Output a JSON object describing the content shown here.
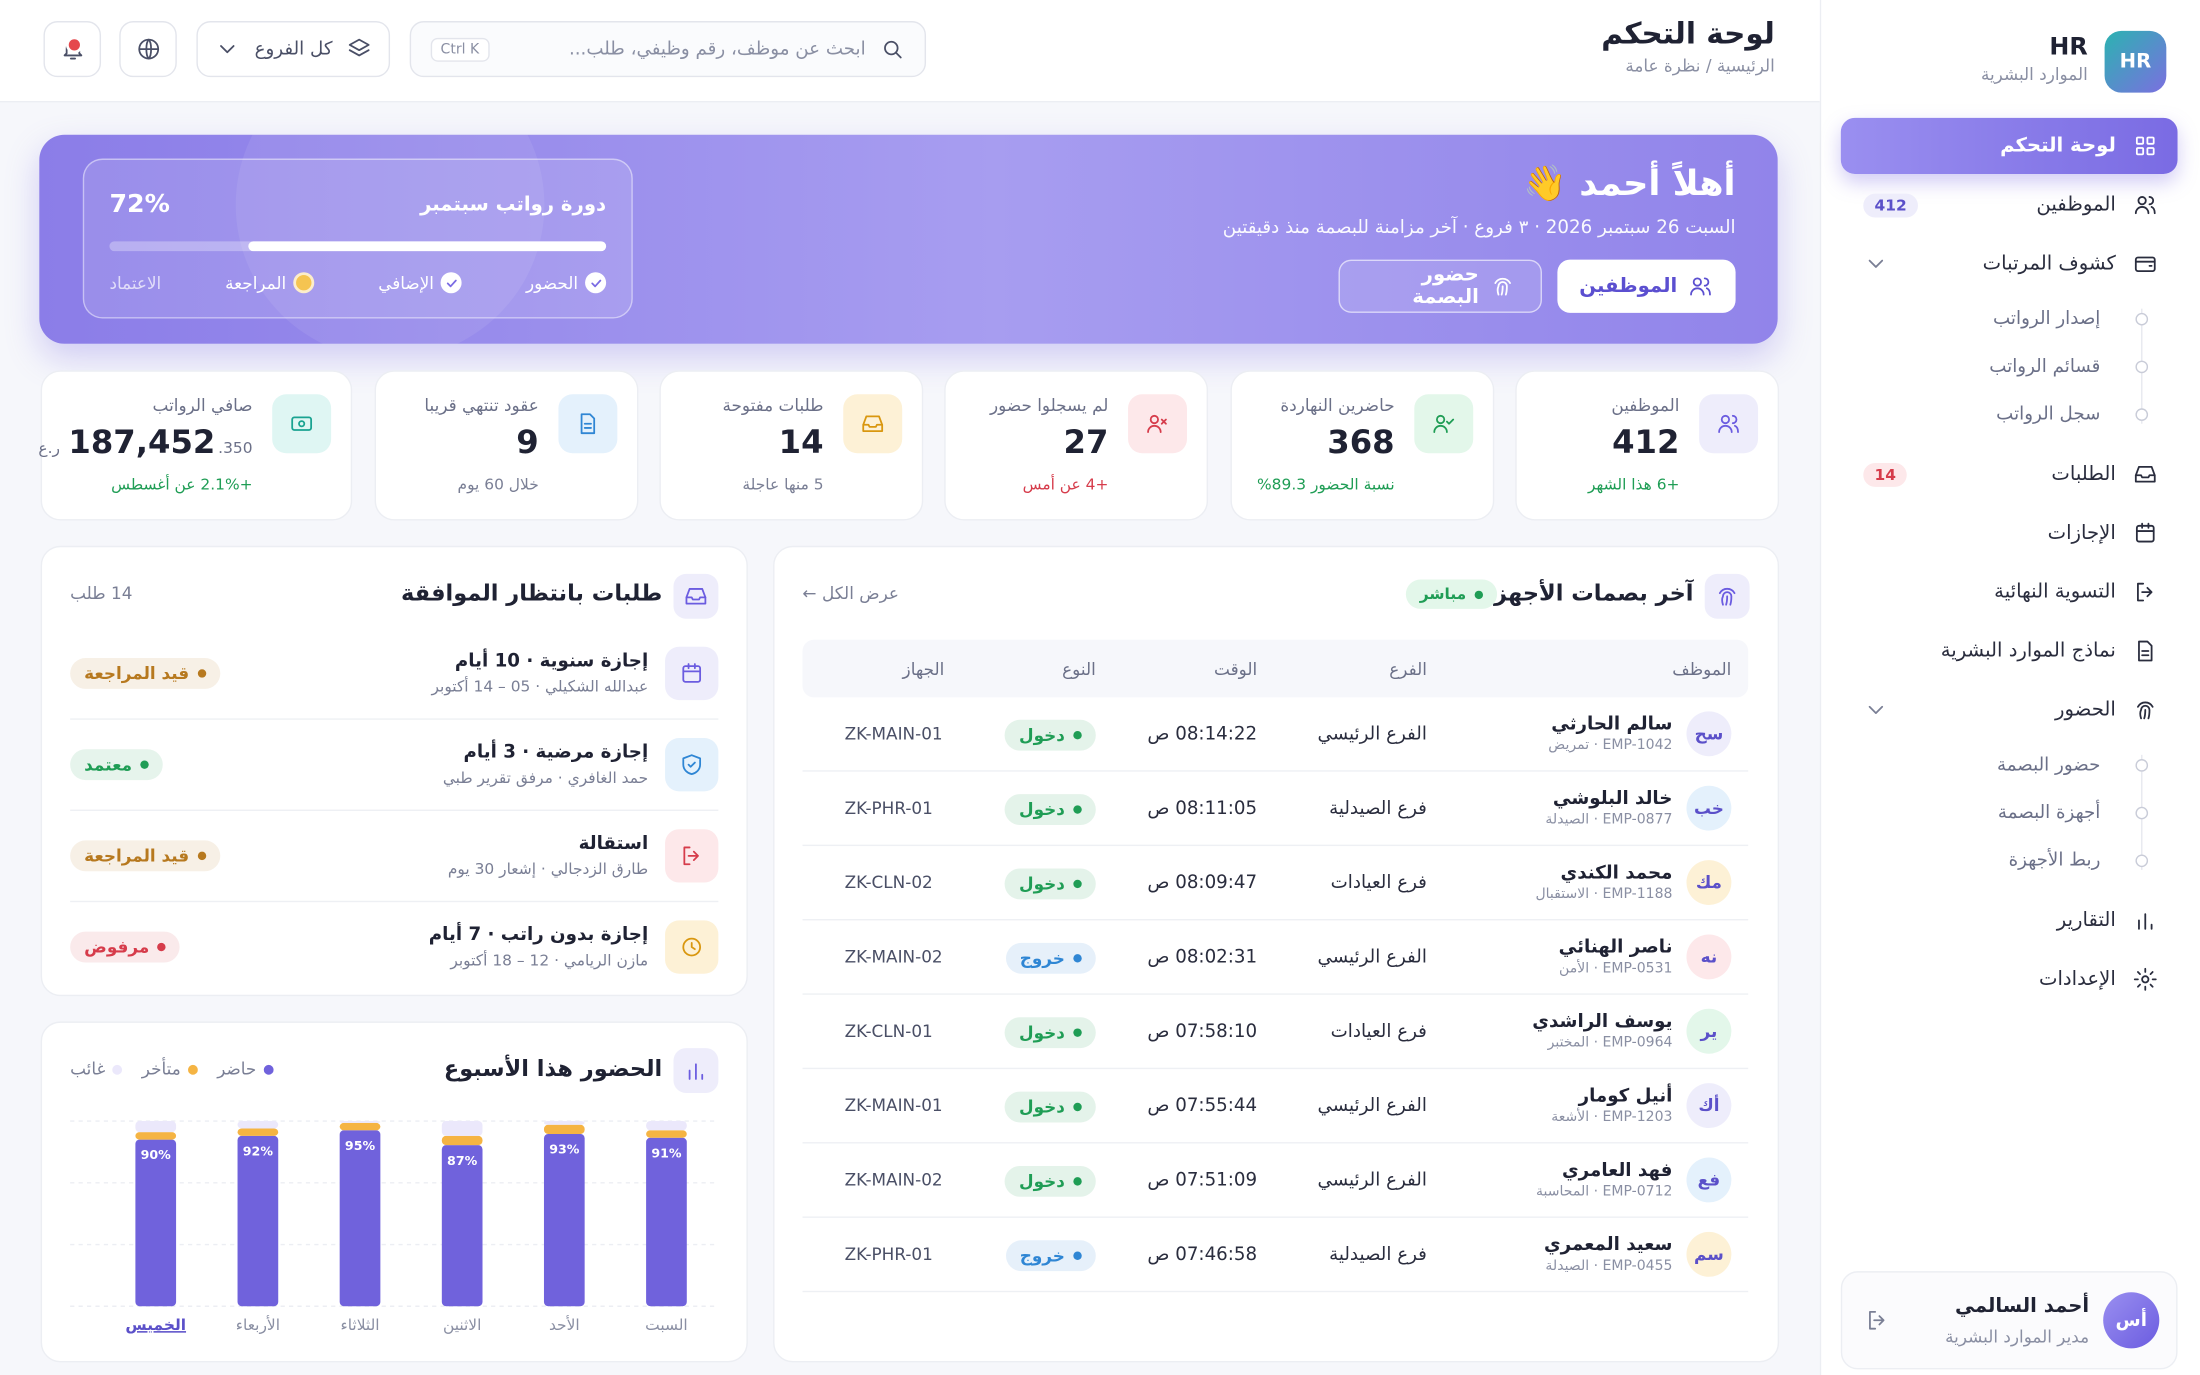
{
  "sidebar": {
    "logo": "HR",
    "title": "HR",
    "subtitle": "الموارد البشرية",
    "nav": [
      {
        "label": "لوحة التحكم",
        "active": true
      },
      {
        "label": "الموظفين",
        "badge": "412"
      },
      {
        "label": "كشوف المرتبات",
        "expanded": true,
        "children": [
          "إصدار الرواتب",
          "قسائم الرواتب",
          "سجل الرواتب"
        ]
      },
      {
        "label": "الطلبات",
        "badge": "14"
      },
      {
        "label": "الإجازات"
      },
      {
        "label": "التسوية النهائية"
      },
      {
        "label": "نماذج الموارد البشرية"
      },
      {
        "label": "الحضور",
        "expanded": true,
        "children": [
          "حضور البصمة",
          "أجهزة البصمة",
          "ربط الأجهزة"
        ]
      },
      {
        "label": "التقارير"
      },
      {
        "label": "الإعدادات"
      }
    ],
    "user": {
      "initials": "أس",
      "name": "أحمد السالمي",
      "role": "مدير الموارد البشرية"
    }
  },
  "header": {
    "title": "لوحة التحكم",
    "breadcrumb": "الرئيسية / نظرة عامة",
    "search_placeholder": "ابحث عن موظف، رقم وظيفي، طلب...",
    "shortcut": "Ctrl K",
    "branch": "كل الفروع"
  },
  "hero": {
    "greeting": "أهلاً أحمد 👋",
    "subtitle": "السبت 26 سبتمبر 2026 · ٣ فروع · آخر مزامنة للبصمة منذ دقيقتين",
    "buttons": [
      "الموظفين",
      "حضور البصمة"
    ],
    "payroll": {
      "title": "دورة رواتب سبتمبر",
      "progress": 72,
      "progress_label": "72%",
      "steps": [
        {
          "label": "الحضور",
          "done": true
        },
        {
          "label": "الإضافي",
          "done": true
        },
        {
          "label": "المراجعة",
          "current": true
        },
        {
          "label": "الاعتماد"
        }
      ]
    }
  },
  "stats": [
    {
      "label": "الموظفين",
      "value": "412",
      "note": "+6 هذا الشهر",
      "note_color": "#1f9d55",
      "icon_bg": "#eeedfb",
      "icon_color": "#6b5ce0"
    },
    {
      "label": "حاضرين النهاردة",
      "value": "368",
      "note": "نسبة الحضور 89.3%",
      "note_color": "#1f9d55",
      "icon_bg": "#e3f7ea",
      "icon_color": "#1f9d55"
    },
    {
      "label": "لم يسجلوا حضور",
      "value": "27",
      "note": "+4 عن أمس",
      "note_color": "#d63c4b",
      "icon_bg": "#fde8ea",
      "icon_color": "#d63c4b"
    },
    {
      "label": "طلبات مفتوحة",
      "value": "14",
      "note": "5 منها عاجلة",
      "note_color": "#7a7f95",
      "icon_bg": "#fdf1d6",
      "icon_color": "#d9970f"
    },
    {
      "label": "عقود تنتهي قريبا",
      "value": "9",
      "note": "خلال 60 يوم",
      "note_color": "#7a7f95",
      "icon_bg": "#e4f1fc",
      "icon_color": "#2f86d4"
    },
    {
      "label": "صافي الرواتب",
      "value": "187,452",
      "decimals": ".350",
      "currency": "ر.ع",
      "note": "+2.1% عن أغسطس",
      "note_color": "#1f9d55",
      "icon_bg": "#dff6f3",
      "icon_color": "#1aa391"
    }
  ],
  "fingerprints": {
    "title": "آخر بصمات الأجهزة",
    "live": "مباشر",
    "view_all": "عرض الكل ←",
    "columns": [
      "الموظف",
      "الفرع",
      "الوقت",
      "النوع",
      "الجهاز"
    ],
    "rows": [
      {
        "initials": "سح",
        "name": "سالم الحارثي",
        "sub": "EMP-1042 · تمريض",
        "branch": "الفرع الرئيسي",
        "time": "08:14:22 ص",
        "type": "دخول",
        "device": "ZK-MAIN-01",
        "avatar_color": "#eeedfb",
        "type_color": "#1f9d55"
      },
      {
        "initials": "خب",
        "name": "خالد البلوشي",
        "sub": "EMP-0877 · الصيدلة",
        "branch": "فرع الصيدلية",
        "time": "08:11:05 ص",
        "type": "دخول",
        "device": "ZK-PHR-01",
        "avatar_color": "#e4f1fc",
        "type_color": "#1f9d55"
      },
      {
        "initials": "مك",
        "name": "محمد الكندي",
        "sub": "EMP-1188 · الاستقبال",
        "branch": "فرع العيادات",
        "time": "08:09:47 ص",
        "type": "دخول",
        "device": "ZK-CLN-02",
        "avatar_color": "#fdf1d6",
        "type_color": "#1f9d55"
      },
      {
        "initials": "نه",
        "name": "ناصر الهنائي",
        "sub": "EMP-0531 · الأمن",
        "branch": "الفرع الرئيسي",
        "time": "08:02:31 ص",
        "type": "خروج",
        "device": "ZK-MAIN-02",
        "avatar_color": "#fde8ea",
        "type_color": "#2f86d4"
      },
      {
        "initials": "ير",
        "name": "يوسف الراشدي",
        "sub": "EMP-0964 · المختبر",
        "branch": "فرع العيادات",
        "time": "07:58:10 ص",
        "type": "دخول",
        "device": "ZK-CLN-01",
        "avatar_color": "#e3f7ea",
        "type_color": "#1f9d55"
      },
      {
        "initials": "أك",
        "name": "أنيل كومار",
        "sub": "EMP-1203 · الأشعة",
        "branch": "الفرع الرئيسي",
        "time": "07:55:44 ص",
        "type": "دخول",
        "device": "ZK-MAIN-01",
        "avatar_color": "#eeedfb",
        "type_color": "#1f9d55"
      },
      {
        "initials": "فع",
        "name": "فهد العامري",
        "sub": "EMP-0712 · المحاسبة",
        "branch": "الفرع الرئيسي",
        "time": "07:51:09 ص",
        "type": "دخول",
        "device": "ZK-MAIN-02",
        "avatar_color": "#e4f1fc",
        "type_color": "#1f9d55"
      },
      {
        "initials": "سم",
        "name": "سعيد المعمري",
        "sub": "EMP-0455 · الصيدلة",
        "branch": "فرع الصيدلية",
        "time": "07:46:58 ص",
        "type": "خروج",
        "device": "ZK-PHR-01",
        "avatar_color": "#fdf1d6",
        "type_color": "#2f86d4"
      }
    ]
  },
  "requests": {
    "title": "طلبات بانتظار الموافقة",
    "count": "14 طلب",
    "items": [
      {
        "title": "إجازة سنوية · 10 أيام",
        "sub": "عبدالله الشكيلي · 05 – 14 أكتوبر",
        "status": "قيد المراجعة",
        "status_color": "#b7791f",
        "icon_bg": "#eeedfb",
        "icon_color": "#6b5ce0"
      },
      {
        "title": "إجازة مرضية · 3 أيام",
        "sub": "حمد الغافري · مرفق تقرير طبي",
        "status": "معتمد",
        "status_color": "#1f9d55",
        "icon_bg": "#e4f1fc",
        "icon_color": "#2f86d4"
      },
      {
        "title": "استقالة",
        "sub": "طارق الزدجالي · إشعار 30 يوم",
        "status": "قيد المراجعة",
        "status_color": "#b7791f",
        "icon_bg": "#fde8ea",
        "icon_color": "#d63c4b"
      },
      {
        "title": "إجازة بدون راتب · 7 أيام",
        "sub": "مازن الريامي · 12 – 18 أكتوبر",
        "status": "مرفوض",
        "status_color": "#d63c4b",
        "icon_bg": "#fdf1d6",
        "icon_color": "#d9970f"
      }
    ]
  },
  "attendance": {
    "type": "bar",
    "stacked": true,
    "title": "الحضور هذا الأسبوع",
    "categories": [
      "السبت",
      "الأحد",
      "الاثنين",
      "الثلاثاء",
      "الأربعاء",
      "الخميس"
    ],
    "highlight_index": 5,
    "ylim": [
      0,
      100
    ],
    "series": [
      {
        "name": "حاضر",
        "color": "#7062dc",
        "values": [
          91,
          93,
          87,
          95,
          92,
          90
        ],
        "value_labels": [
          "91%",
          "93%",
          "87%",
          "95%",
          "92%",
          "90%"
        ]
      },
      {
        "name": "متأخر",
        "color": "#f5b443",
        "values": [
          4,
          5,
          5,
          4,
          4,
          4
        ]
      },
      {
        "name": "غائب",
        "color": "#ebe8fb",
        "values": [
          5,
          2,
          8,
          1,
          4,
          6
        ]
      }
    ]
  }
}
